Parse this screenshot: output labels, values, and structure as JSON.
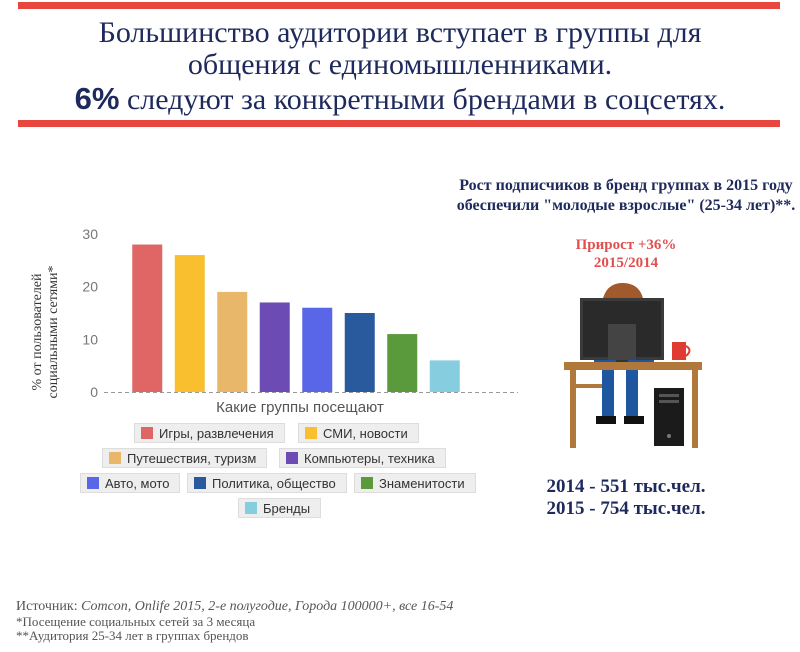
{
  "header": {
    "line1": "Большинство аудитории вступает в группы для",
    "line2": "общения с единомышленниками.",
    "line3_bold": "6%",
    "line3_rest": "следуют за конкретными брендами в соцсетях."
  },
  "chart_data": {
    "type": "bar",
    "xlabel": "Какие группы посещают",
    "ylabel": "% от пользователей социальными сетями*",
    "ylim": [
      0,
      30
    ],
    "yticks": [
      0,
      10,
      20,
      30
    ],
    "grid": false,
    "legend_position": "bottom",
    "series": [
      {
        "name": "Игры, развлечения",
        "value": 28,
        "color": "#e06666"
      },
      {
        "name": "СМИ, новости",
        "value": 26,
        "color": "#f9bf2f"
      },
      {
        "name": "Путешествия, туризм",
        "value": 19,
        "color": "#e9b769"
      },
      {
        "name": "Компьютеры, техника",
        "value": 17,
        "color": "#6d4bb5"
      },
      {
        "name": "Авто, мото",
        "value": 16,
        "color": "#5a66e8"
      },
      {
        "name": "Политика, общество",
        "value": 15,
        "color": "#2a5a9e"
      },
      {
        "name": "Знаменитости",
        "value": 11,
        "color": "#5b9a3c"
      },
      {
        "name": "Бренды",
        "value": 6,
        "color": "#86cde0"
      }
    ]
  },
  "right_panel": {
    "title": "Рост подписчиков в бренд группах в 2015 году обеспечили \"молодые взрослые\" (25-34 лет)**.",
    "growth": "Прирост +36%",
    "period": "2015/2014",
    "stat_2014": "2014 - 551 тыс.чел.",
    "stat_2015": "2015 - 754 тыс.чел."
  },
  "footer": {
    "source_label": "Источник:",
    "source_text": "Comcon, Onlife 2015, 2-е полугодие, Города 100000+, все 16-54",
    "note1": "*Посещение социальных сетей за 3 месяца",
    "note2": "**Аудитория 25-34 лет  в группах брендов"
  },
  "colors": {
    "accent": "#e8473f",
    "title": "#1f2a5c",
    "growth": "#e05050"
  }
}
